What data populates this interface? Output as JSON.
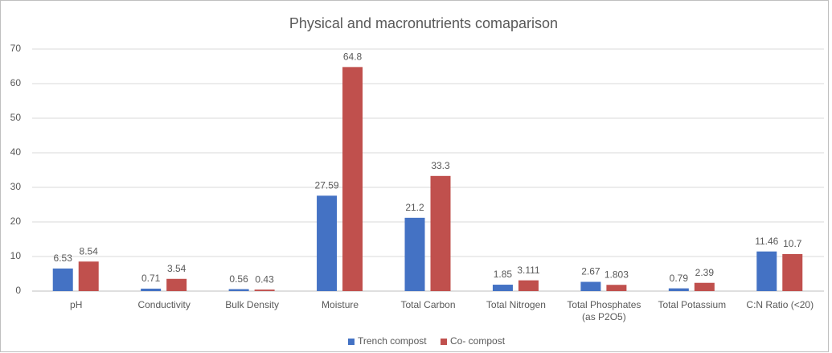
{
  "chart_data": {
    "type": "bar",
    "title": "Physical and macronutrients comaparison",
    "categories": [
      "pH",
      "Conductivity",
      "Bulk Density",
      "Moisture",
      "Total Carbon",
      "Total Nitrogen",
      "Total Phosphates (as P2O5)",
      "Total Potassium",
      "C:N Ratio (<20)"
    ],
    "series": [
      {
        "name": "Trench compost",
        "color": "#4472c4",
        "values": [
          6.53,
          0.71,
          0.56,
          27.59,
          21.2,
          1.85,
          2.67,
          0.79,
          11.46
        ]
      },
      {
        "name": "Co- compost",
        "color": "#c0504d",
        "values": [
          8.54,
          3.54,
          0.43,
          64.8,
          33.3,
          3.111,
          1.803,
          2.39,
          10.7
        ]
      }
    ],
    "ylim": [
      0,
      70
    ],
    "yticks": [
      0,
      10,
      20,
      30,
      40,
      50,
      60,
      70
    ],
    "grid": true,
    "legend": "bottom"
  }
}
